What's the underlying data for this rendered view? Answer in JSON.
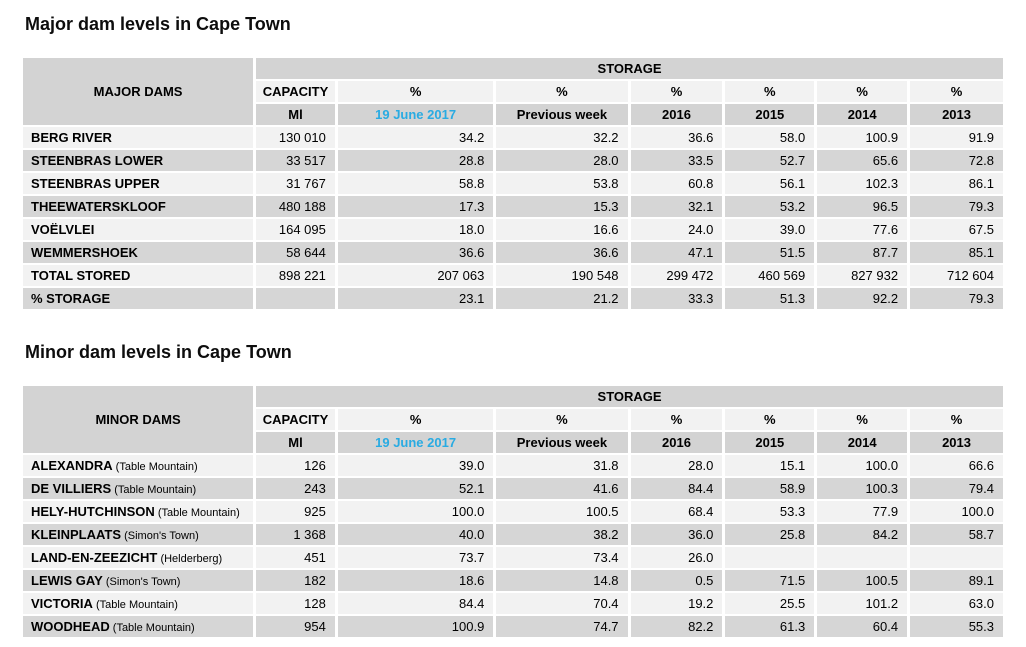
{
  "colors": {
    "accent_blue": "#29ABE2",
    "header_gray": "#d3d3d3",
    "row_light": "#f2f2f2",
    "row_dark": "#d6d6d6"
  },
  "major": {
    "title": "Major dam levels in Cape Town",
    "header": {
      "dams": "MAJOR DAMS",
      "storage": "STORAGE",
      "capacity": "CAPACITY",
      "unit": "Ml",
      "percent": "%",
      "date": "19 June 2017",
      "prev_week": "Previous week",
      "year_2016": "2016",
      "year_2015": "2015",
      "year_2014": "2014",
      "year_2013": "2013"
    },
    "rows": [
      {
        "name": "BERG RIVER",
        "suffix": "",
        "values": [
          "130 010",
          "34.2",
          "32.2",
          "36.6",
          "58.0",
          "100.9",
          "91.9"
        ]
      },
      {
        "name": "STEENBRAS LOWER",
        "suffix": "",
        "values": [
          "33 517",
          "28.8",
          "28.0",
          "33.5",
          "52.7",
          "65.6",
          "72.8"
        ]
      },
      {
        "name": "STEENBRAS UPPER",
        "suffix": "",
        "values": [
          "31 767",
          "58.8",
          "53.8",
          "60.8",
          "56.1",
          "102.3",
          "86.1"
        ]
      },
      {
        "name": "THEEWATERSKLOOF",
        "suffix": "",
        "values": [
          "480 188",
          "17.3",
          "15.3",
          "32.1",
          "53.2",
          "96.5",
          "79.3"
        ]
      },
      {
        "name": "VOËLVLEI",
        "suffix": "",
        "values": [
          "164 095",
          "18.0",
          "16.6",
          "24.0",
          "39.0",
          "77.6",
          "67.5"
        ]
      },
      {
        "name": "WEMMERSHOEK",
        "suffix": "",
        "values": [
          "58 644",
          "36.6",
          "36.6",
          "47.1",
          "51.5",
          "87.7",
          "85.1"
        ]
      },
      {
        "name": "TOTAL STORED",
        "suffix": "",
        "values": [
          "898 221",
          "207 063",
          "190 548",
          "299 472",
          "460 569",
          "827 932",
          "712 604"
        ]
      },
      {
        "name": "% STORAGE",
        "suffix": "",
        "values": [
          "",
          "23.1",
          "21.2",
          "33.3",
          "51.3",
          "92.2",
          "79.3"
        ]
      }
    ]
  },
  "minor": {
    "title": "Minor dam levels in Cape Town",
    "header": {
      "dams": "MINOR DAMS",
      "storage": "STORAGE",
      "capacity": "CAPACITY",
      "unit": "Ml",
      "percent": "%",
      "date": "19 June 2017",
      "prev_week": "Previous week",
      "year_2016": "2016",
      "year_2015": "2015",
      "year_2014": "2014",
      "year_2013": "2013"
    },
    "rows": [
      {
        "name": "ALEXANDRA",
        "suffix": "(Table Mountain)",
        "values": [
          "126",
          "39.0",
          "31.8",
          "28.0",
          "15.1",
          "100.0",
          "66.6"
        ]
      },
      {
        "name": "DE VILLIERS",
        "suffix": "(Table Mountain)",
        "values": [
          "243",
          "52.1",
          "41.6",
          "84.4",
          "58.9",
          "100.3",
          "79.4"
        ]
      },
      {
        "name": "HELY-HUTCHINSON",
        "suffix": "(Table Mountain)",
        "values": [
          "925",
          "100.0",
          "100.5",
          "68.4",
          "53.3",
          "77.9",
          "100.0"
        ]
      },
      {
        "name": "KLEINPLAATS",
        "suffix": "(Simon's Town)",
        "values": [
          "1 368",
          "40.0",
          "38.2",
          "36.0",
          "25.8",
          "84.2",
          "58.7"
        ]
      },
      {
        "name": "LAND-EN-ZEEZICHT",
        "suffix": "(Helderberg)",
        "values": [
          "451",
          "73.7",
          "73.4",
          "26.0",
          "",
          "",
          ""
        ]
      },
      {
        "name": "LEWIS GAY",
        "suffix": "(Simon's Town)",
        "values": [
          "182",
          "18.6",
          "14.8",
          "0.5",
          "71.5",
          "100.5",
          "89.1"
        ]
      },
      {
        "name": "VICTORIA",
        "suffix": "(Table Mountain)",
        "values": [
          "128",
          "84.4",
          "70.4",
          "19.2",
          "25.5",
          "101.2",
          "63.0"
        ]
      },
      {
        "name": "WOODHEAD",
        "suffix": "(Table Mountain)",
        "values": [
          "954",
          "100.9",
          "74.7",
          "82.2",
          "61.3",
          "60.4",
          "55.3"
        ]
      }
    ]
  }
}
